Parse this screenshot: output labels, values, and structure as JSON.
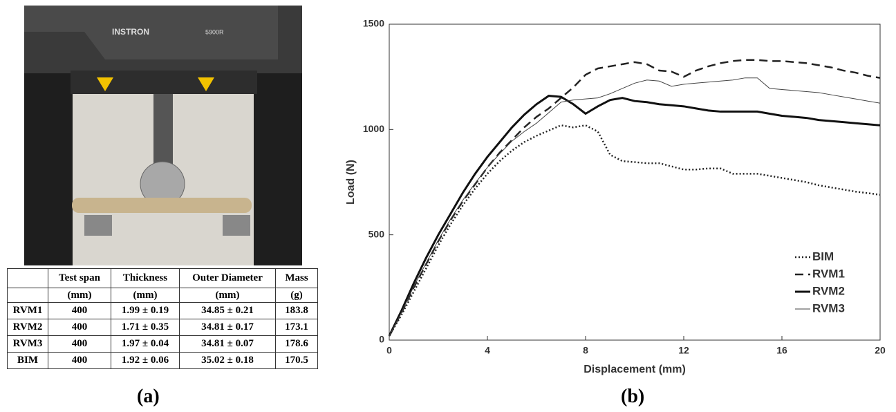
{
  "chart_data": {
    "type": "line",
    "xlabel": "Displacement (mm)",
    "ylabel": "Load (N)",
    "x": [
      0,
      0.5,
      1,
      1.5,
      2,
      2.5,
      3,
      3.5,
      4,
      4.5,
      5,
      5.5,
      6,
      6.5,
      7,
      7.5,
      8,
      8.5,
      9,
      9.5,
      10,
      10.5,
      11,
      11.5,
      12,
      12.5,
      13,
      13.5,
      14,
      14.5,
      15,
      15.5,
      16,
      16.5,
      17,
      17.5,
      18,
      18.5,
      19,
      19.5,
      20
    ],
    "series": [
      {
        "name": "BIM",
        "color": "#222222",
        "line_style": "dotted",
        "line_width": 2.5,
        "values": [
          20,
          120,
          230,
          340,
          450,
          550,
          640,
          720,
          790,
          850,
          900,
          940,
          970,
          995,
          1020,
          1010,
          1020,
          990,
          880,
          850,
          845,
          840,
          840,
          825,
          810,
          810,
          815,
          815,
          790,
          790,
          790,
          780,
          770,
          760,
          750,
          735,
          725,
          715,
          705,
          698,
          690
        ]
      },
      {
        "name": "RVM1",
        "color": "#222222",
        "line_style": "dashed",
        "line_width": 2.5,
        "values": [
          20,
          130,
          250,
          360,
          470,
          570,
          660,
          740,
          820,
          890,
          950,
          1010,
          1060,
          1100,
          1150,
          1200,
          1260,
          1290,
          1300,
          1310,
          1320,
          1310,
          1280,
          1275,
          1250,
          1280,
          1300,
          1315,
          1325,
          1330,
          1330,
          1325,
          1325,
          1320,
          1315,
          1305,
          1295,
          1280,
          1270,
          1255,
          1245
        ]
      },
      {
        "name": "RVM2",
        "color": "#111111",
        "line_style": "solid",
        "line_width": 3,
        "values": [
          20,
          140,
          270,
          390,
          500,
          600,
          700,
          790,
          870,
          940,
          1010,
          1070,
          1120,
          1160,
          1155,
          1120,
          1075,
          1110,
          1140,
          1150,
          1135,
          1130,
          1120,
          1115,
          1110,
          1100,
          1090,
          1085,
          1085,
          1085,
          1085,
          1075,
          1065,
          1060,
          1055,
          1045,
          1040,
          1035,
          1030,
          1025,
          1020
        ]
      },
      {
        "name": "RVM3",
        "color": "#444444",
        "line_style": "solid",
        "line_width": 1,
        "values": [
          20,
          130,
          255,
          365,
          475,
          575,
          665,
          745,
          820,
          885,
          945,
          990,
          1030,
          1080,
          1130,
          1140,
          1145,
          1150,
          1170,
          1195,
          1220,
          1235,
          1230,
          1205,
          1215,
          1220,
          1225,
          1230,
          1235,
          1245,
          1245,
          1195,
          1190,
          1185,
          1180,
          1175,
          1165,
          1155,
          1145,
          1135,
          1125
        ]
      }
    ],
    "xlim": [
      0,
      20
    ],
    "xticks": [
      0,
      4,
      8,
      12,
      16,
      20
    ],
    "ylim": [
      0,
      1500
    ],
    "yticks": [
      0,
      500,
      1000,
      1500
    ],
    "grid": false,
    "legend": "lower right"
  },
  "photo": {
    "brand": "INSTRON",
    "model": "5900R"
  },
  "table": {
    "columns": [
      {
        "name": "Test span",
        "unit": "(mm)"
      },
      {
        "name": "Thickness",
        "unit": "(mm)"
      },
      {
        "name": "Outer Diameter",
        "unit": "(mm)"
      },
      {
        "name": "Mass",
        "unit": "(g)"
      }
    ],
    "rows": [
      [
        "RVM1",
        "400",
        "1.99 ± 0.19",
        "34.85 ± 0.21",
        "183.8"
      ],
      [
        "RVM2",
        "400",
        "1.71 ± 0.35",
        "34.81 ± 0.17",
        "173.1"
      ],
      [
        "RVM3",
        "400",
        "1.97 ± 0.04",
        "34.81 ± 0.07",
        "178.6"
      ],
      [
        "BIM",
        "400",
        "1.92 ± 0.06",
        "35.02 ± 0.18",
        "170.5"
      ]
    ]
  },
  "panel_labels": [
    "(a)",
    "(b)"
  ]
}
